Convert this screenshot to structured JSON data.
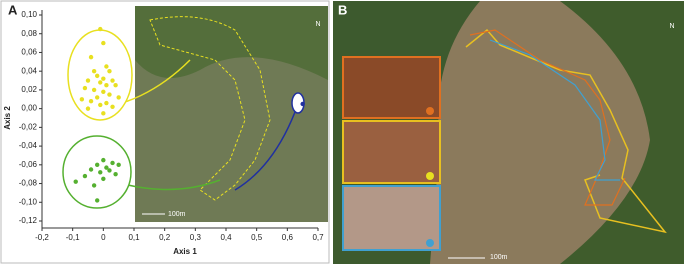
{
  "chart_data": {
    "type": "scatter",
    "panel_label": "A",
    "x_label": "Axis 1",
    "y_label": "Axis 2",
    "xlim": [
      -0.2,
      0.7
    ],
    "ylim": [
      -0.12,
      0.1
    ],
    "xticks": [
      {
        "value": -0.2,
        "label": "-0,2"
      },
      {
        "value": -0.1,
        "label": "-0,1"
      },
      0,
      {
        "value": 0.1,
        "label": "0,1"
      },
      {
        "value": 0.2,
        "label": "0,2"
      },
      {
        "value": 0.3,
        "label": "0,3"
      },
      {
        "value": 0.4,
        "label": "0,4"
      },
      {
        "value": 0.5,
        "label": "0,5"
      },
      {
        "value": 0.6,
        "label": "0,6"
      },
      {
        "value": 0.7,
        "label": "0,7"
      }
    ],
    "yticks": [
      {
        "value": 0.1,
        "label": "0,10"
      },
      {
        "value": 0.08,
        "label": "0,08"
      },
      {
        "value": 0.06,
        "label": "0,06"
      },
      {
        "value": 0.04,
        "label": "0,04"
      },
      {
        "value": 0.02,
        "label": "0,02"
      },
      {
        "value": 0,
        "label": "0,00"
      },
      {
        "value": -0.02,
        "label": "-0,02"
      },
      {
        "value": -0.04,
        "label": "-0,04"
      },
      {
        "value": -0.06,
        "label": "-0,06"
      },
      {
        "value": -0.08,
        "label": "-0,08"
      },
      {
        "value": -0.1,
        "label": "-0,10"
      },
      {
        "value": -0.12,
        "label": "-0,12"
      }
    ],
    "series": [
      {
        "color": "#e8e020",
        "x": [
          -0.01,
          0.0,
          -0.04,
          0.01,
          -0.03,
          0.02,
          -0.02,
          0.0,
          0.03,
          -0.05,
          -0.01,
          0.01,
          0.04,
          -0.06,
          -0.03,
          0.0,
          0.02,
          -0.02,
          0.05,
          -0.07,
          -0.04,
          0.01,
          -0.01,
          0.03,
          -0.05,
          0.0
        ],
        "values": [
          0.085,
          0.07,
          0.055,
          0.045,
          0.04,
          0.04,
          0.035,
          0.032,
          0.03,
          0.03,
          0.028,
          0.025,
          0.025,
          0.022,
          0.02,
          0.018,
          0.015,
          0.012,
          0.012,
          0.01,
          0.008,
          0.006,
          0.004,
          0.002,
          0.0,
          -0.005
        ]
      },
      {
        "color": "#55b030",
        "x": [
          0.0,
          0.03,
          -0.02,
          0.05,
          0.01,
          -0.04,
          0.02,
          -0.01,
          0.04,
          -0.06,
          0.0,
          -0.09,
          -0.03,
          -0.02
        ],
        "values": [
          -0.055,
          -0.058,
          -0.06,
          -0.06,
          -0.063,
          -0.065,
          -0.066,
          -0.068,
          -0.07,
          -0.072,
          -0.075,
          -0.078,
          -0.082,
          -0.098
        ]
      },
      {
        "color": "#2030a0",
        "x": [
          0.65
        ],
        "values": [
          0.005
        ]
      }
    ],
    "inset_scale": "100m",
    "inset_north": "N"
  },
  "panel_b": {
    "label": "B",
    "scale_bar": "100m",
    "north": "N"
  }
}
